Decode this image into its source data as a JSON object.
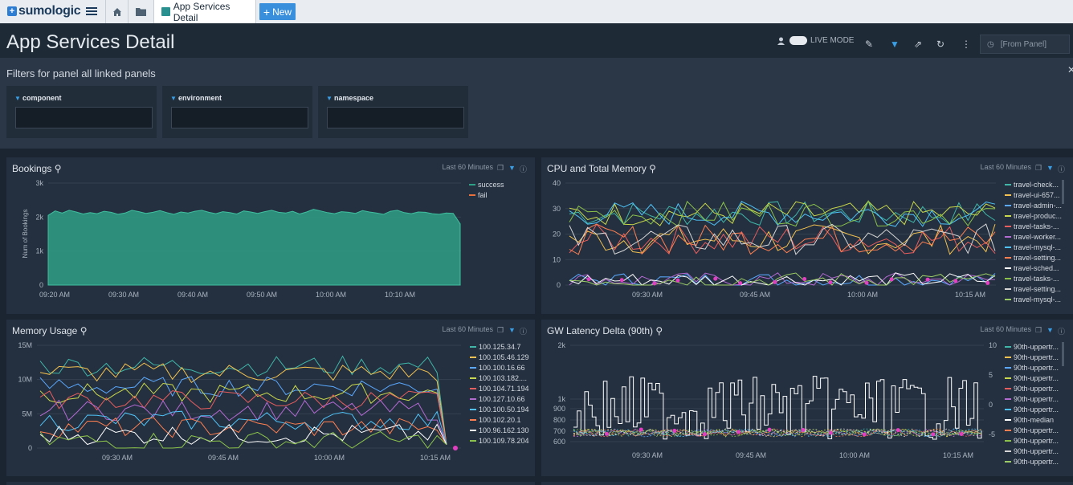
{
  "app": {
    "brand": "sumologic"
  },
  "tabs": {
    "active_label": "App Services Detail",
    "new_label": "New"
  },
  "header": {
    "title": "App Services Detail",
    "live_mode": "LIVE MODE",
    "time_range": "[From Panel]"
  },
  "filters": {
    "title": "Filters for panel all linked panels",
    "fields": [
      {
        "label": "component",
        "value": ""
      },
      {
        "label": "environment",
        "value": ""
      },
      {
        "label": "namespace",
        "value": ""
      }
    ]
  },
  "panels": {
    "bookings": {
      "title": "Bookings",
      "range": "Last 60 Minutes"
    },
    "cpu": {
      "title": "CPU and Total Memory",
      "range": "Last 60 Minutes"
    },
    "memory": {
      "title": "Memory Usage",
      "range": "Last 60 Minutes"
    },
    "latency": {
      "title": "GW Latency Delta (90th)",
      "range": "Last 60 Minutes"
    }
  },
  "chart_data": [
    {
      "type": "area",
      "title": "Bookings",
      "ylabel": "Num of Bookings",
      "ylim": [
        0,
        3000
      ],
      "yticks": [
        "0",
        "1k",
        "2k",
        "3k"
      ],
      "xticks": [
        "09:20 AM",
        "09:30 AM",
        "09:40 AM",
        "09:50 AM",
        "10:00 AM",
        "10:10 AM"
      ],
      "series": [
        {
          "name": "success",
          "color": "#2f9f86",
          "values": [
            2050,
            2180,
            2120,
            2200,
            2150,
            2090,
            2130,
            2100,
            2170,
            2140,
            2080,
            2120,
            2200,
            2160,
            2110,
            2140,
            2190,
            2130,
            2080,
            2150,
            2120,
            2170,
            2200,
            2140,
            2100,
            2160,
            2130,
            2090,
            2180,
            2150,
            2110,
            2160,
            2200,
            2140,
            2120,
            2170,
            2090,
            2150,
            2230,
            2180,
            2130,
            2100,
            2160,
            2140,
            2110,
            2190,
            2150,
            2120,
            2080,
            2170,
            2200,
            2130,
            2100,
            2150,
            2140,
            2100,
            2080,
            2120,
            2110,
            1800
          ]
        },
        {
          "name": "fail",
          "color": "#e8703f",
          "values": []
        }
      ]
    },
    {
      "type": "line",
      "title": "CPU and Total Memory",
      "ylim": [
        0,
        40
      ],
      "yticks": [
        "0",
        "10",
        "20",
        "30",
        "40"
      ],
      "xticks": [
        "09:30 AM",
        "09:45 AM",
        "10:00 AM",
        "10:15 AM"
      ],
      "series_names": [
        "travel-check...",
        "travel-ui-657...",
        "travel-admin-...",
        "travel-produc...",
        "travel-tasks-...",
        "travel-worker...",
        "travel-mysql-...",
        "travel-setting...",
        "travel-sched...",
        "travel-tasks-...",
        "travel-setting...",
        "travel-mysql-..."
      ],
      "series_colors": [
        "#3fb6a8",
        "#f2c14e",
        "#5aa9ff",
        "#c9d84a",
        "#e85d5d",
        "#b36ad1",
        "#4fc3f7",
        "#ff7f50",
        "#ffffff",
        "#8bc34a",
        "#d6d6d6",
        "#9ccc65"
      ],
      "bands": [
        {
          "level": 28,
          "spread": 5
        },
        {
          "level": 18,
          "spread": 6
        },
        {
          "level": 2,
          "spread": 3
        }
      ]
    },
    {
      "type": "line",
      "title": "Memory Usage",
      "ylim": [
        0,
        15000000
      ],
      "yticks": [
        "0",
        "5M",
        "10M",
        "15M"
      ],
      "xticks": [
        "09:30 AM",
        "09:45 AM",
        "10:00 AM",
        "10:15 AM"
      ],
      "series_names": [
        "100.125.34.7",
        "100.105.46.129",
        "100.100.16.66",
        "100.103.182....",
        "100.104.71.194",
        "100.127.10.66",
        "100.100.50.194",
        "100.102.20.1",
        "100.96.162.130",
        "100.109.78.204"
      ],
      "series_colors": [
        "#3fb6a8",
        "#f2c14e",
        "#5aa9ff",
        "#c9d84a",
        "#e85d5d",
        "#b36ad1",
        "#4fc3f7",
        "#ff7f50",
        "#ffffff",
        "#8bc34a"
      ],
      "levels": [
        12000000,
        11000000,
        9000000,
        8000000,
        7000000,
        5500000,
        4000000,
        3000000,
        2000000,
        1000000
      ]
    },
    {
      "type": "line",
      "title": "GW Latency Delta (90th)",
      "ylim_left": [
        600,
        2000
      ],
      "yticks_left": [
        "600",
        "700",
        "800",
        "900",
        "1k",
        "2k"
      ],
      "yticks_right": [
        "-5",
        "0",
        "5",
        "10"
      ],
      "xticks": [
        "09:30 AM",
        "09:45 AM",
        "10:00 AM",
        "10:15 AM"
      ],
      "series_names": [
        "90th-uppertr...",
        "90th-uppertr...",
        "90th-uppertr...",
        "90th-uppertr...",
        "90th-uppertr...",
        "90th-uppertr...",
        "90th-uppertr...",
        "90th-median",
        "90th-uppertr...",
        "90th-uppertr...",
        "90th-uppertr...",
        "90th-uppertr..."
      ],
      "series_colors": [
        "#3fb6a8",
        "#f2c14e",
        "#5aa9ff",
        "#c9d84a",
        "#e85d5d",
        "#b36ad1",
        "#4fc3f7",
        "#ffffff",
        "#ff7f50",
        "#8bc34a",
        "#d6d6d6",
        "#9ccc65"
      ]
    }
  ]
}
